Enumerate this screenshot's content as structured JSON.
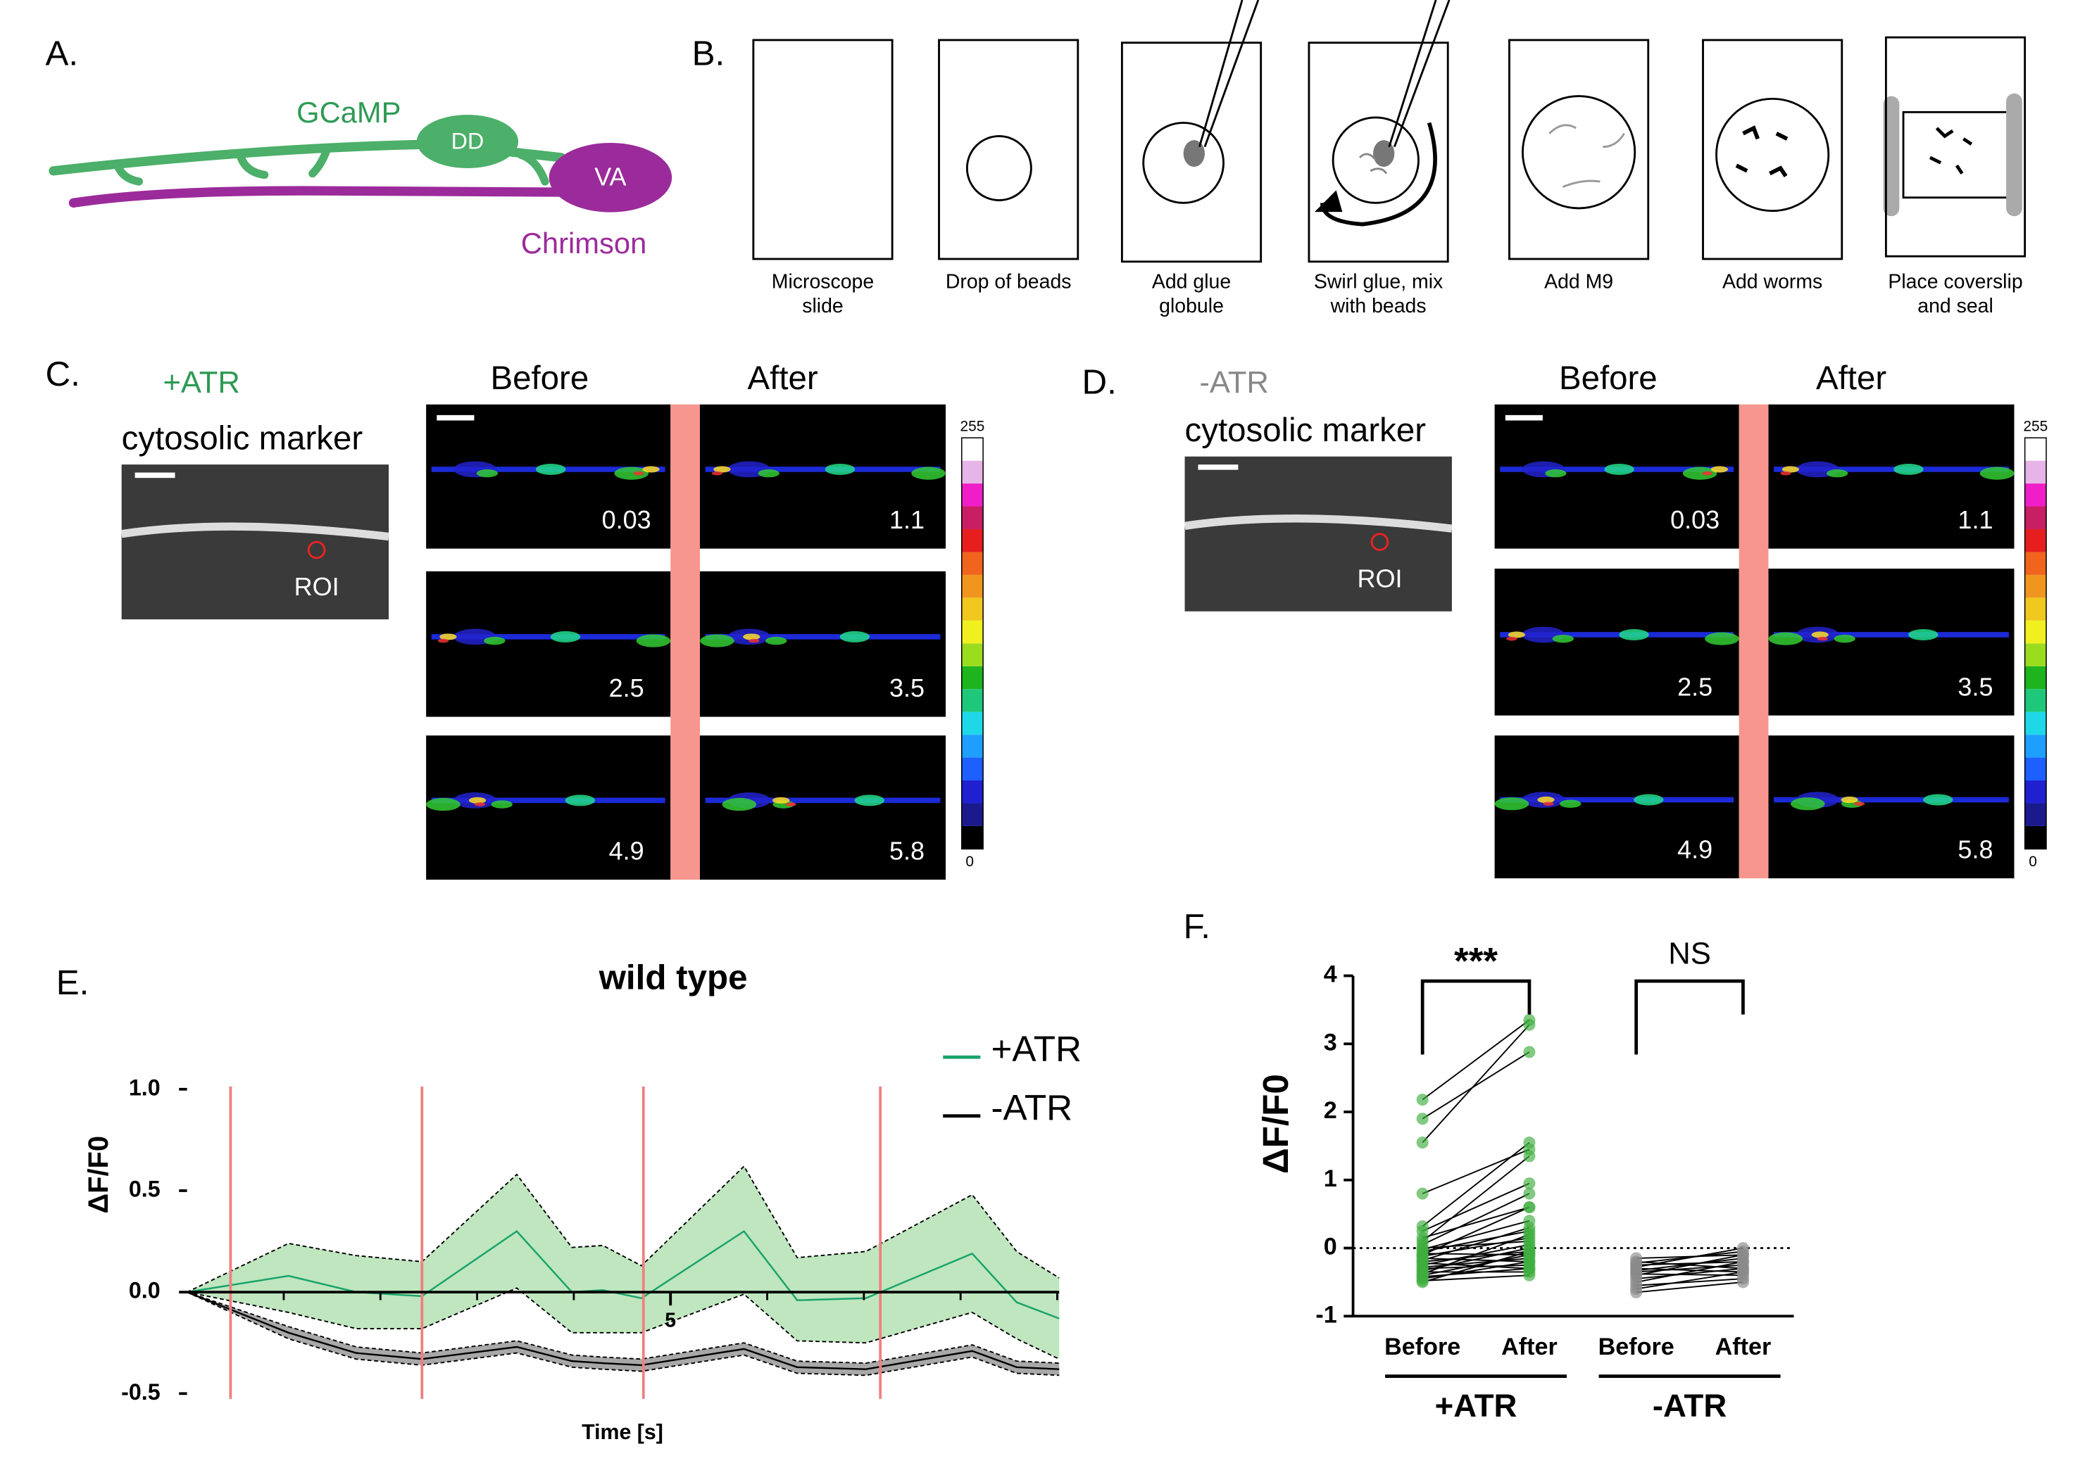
{
  "panels": {
    "a": {
      "label": "A.",
      "gcamp": "GCaMP",
      "dd": "DD",
      "va": "VA",
      "chrimson": "Chrimson"
    },
    "b": {
      "label": "B.",
      "steps": [
        [
          "Microscope",
          "slide"
        ],
        [
          "Drop of beads"
        ],
        [
          "Add glue",
          "globule"
        ],
        [
          "Swirl glue, mix",
          "with beads"
        ],
        [
          "Add M9"
        ],
        [
          "Add worms"
        ],
        [
          "Place coverslip",
          "and seal"
        ]
      ]
    },
    "c": {
      "label": "C.",
      "condition": "+ATR",
      "marker": "cytosolic marker",
      "roi": "ROI",
      "before": "Before",
      "after": "After",
      "cbar_max": 255,
      "cbar_min": 0,
      "times": [
        0.03,
        1.1,
        2.5,
        3.5,
        4.9,
        5.8
      ]
    },
    "d": {
      "label": "D.",
      "condition": "-ATR",
      "marker": "cytosolic marker",
      "roi": "ROI",
      "before": "Before",
      "after": "After",
      "cbar_max": 255,
      "cbar_min": 0,
      "times": [
        0.03,
        1.1,
        2.5,
        3.5,
        4.9,
        5.8
      ]
    }
  },
  "chart_data": [
    {
      "type": "line",
      "panel": "E.",
      "title": "wild type",
      "xlabel": "Time [s]",
      "ylabel": "ΔF/F0",
      "x": [
        0,
        1.05,
        1.75,
        2.43,
        3.41,
        3.98,
        4.3,
        4.7,
        5.76,
        6.31,
        7.02,
        8.12,
        8.58,
        9.02
      ],
      "xlim": [
        0,
        9.02
      ],
      "xticks": [
        5
      ],
      "minor_xticks": [
        1,
        2,
        3,
        4,
        6,
        7,
        8,
        9
      ],
      "ylim": [
        -0.5,
        1
      ],
      "yticks": [
        {
          "value": -0.5,
          "label": "-0.5"
        },
        {
          "value": 0,
          "label": "0.0"
        },
        {
          "value": 0.5,
          "label": "0.5"
        },
        {
          "value": 1,
          "label": "1.0"
        }
      ],
      "stimuli": [
        0.45,
        2.43,
        4.72,
        7.17
      ],
      "stimulus_color": "#f08080",
      "legend": "upper right",
      "series": [
        {
          "name": "+ATR",
          "color": "#1aa36b",
          "band_color": "#bfe6bf",
          "values": [
            0,
            0.08,
            0,
            -0.02,
            0.3,
            0,
            0.01,
            -0.03,
            0.3,
            -0.04,
            -0.03,
            0.19,
            -0.05,
            -0.13
          ],
          "upper": [
            0,
            0.24,
            0.18,
            0.15,
            0.58,
            0.22,
            0.23,
            0.13,
            0.62,
            0.17,
            0.2,
            0.48,
            0.2,
            0.07
          ],
          "lower": [
            0,
            -0.1,
            -0.18,
            -0.18,
            0.02,
            -0.2,
            -0.2,
            -0.2,
            -0.01,
            -0.24,
            -0.25,
            -0.1,
            -0.23,
            -0.33
          ]
        },
        {
          "name": "-ATR",
          "color": "#000000",
          "band_color": "#a8a8a8",
          "values": [
            0,
            -0.2,
            -0.3,
            -0.33,
            -0.27,
            -0.34,
            -0.35,
            -0.36,
            -0.28,
            -0.37,
            -0.38,
            -0.29,
            -0.37,
            -0.38
          ],
          "upper": [
            0,
            -0.17,
            -0.27,
            -0.3,
            -0.24,
            -0.31,
            -0.32,
            -0.33,
            -0.25,
            -0.34,
            -0.35,
            -0.26,
            -0.34,
            -0.35
          ],
          "lower": [
            0,
            -0.23,
            -0.33,
            -0.36,
            -0.3,
            -0.37,
            -0.38,
            -0.39,
            -0.31,
            -0.4,
            -0.41,
            -0.32,
            -0.4,
            -0.41
          ]
        }
      ]
    },
    {
      "type": "paired",
      "panel": "F.",
      "ylabel": "ΔF/F0",
      "categories": [
        "Before",
        "After"
      ],
      "ylim": [
        -1,
        4
      ],
      "yticks": [
        -1,
        0,
        1,
        2,
        3,
        4
      ],
      "series": [
        {
          "name": "+ATR",
          "color": "#3fae3f",
          "significance": "***",
          "before": [
            2.18,
            1.9,
            1.55,
            0.8,
            0.32,
            0.25,
            0.15,
            0.1,
            0.05,
            0,
            -0.02,
            -0.05,
            -0.08,
            -0.1,
            -0.12,
            -0.15,
            -0.18,
            -0.2,
            -0.22,
            -0.25,
            -0.28,
            -0.3,
            -0.33,
            -0.35,
            -0.38,
            -0.4,
            -0.42,
            -0.45,
            -0.48,
            -0.5
          ],
          "after": [
            3.35,
            2.88,
            3.28,
            1.45,
            1.55,
            0.95,
            0.6,
            1.35,
            0.8,
            0.1,
            0.4,
            0.25,
            -0.1,
            0.6,
            0.15,
            -0.2,
            0.3,
            -0.05,
            -0.3,
            0.05,
            -0.15,
            -0.25,
            0,
            -0.35,
            0.2,
            -0.1,
            -0.3,
            -0.2,
            -0.4,
            -0.05
          ]
        },
        {
          "name": "-ATR",
          "color": "#8a8a8a",
          "significance": "NS",
          "before": [
            -0.15,
            -0.2,
            -0.22,
            -0.25,
            -0.28,
            -0.3,
            -0.33,
            -0.35,
            -0.38,
            -0.4,
            -0.45,
            -0.5,
            -0.55,
            -0.6,
            -0.65
          ],
          "after": [
            -0.1,
            -0.3,
            -0.05,
            -0.2,
            0,
            -0.35,
            -0.15,
            -0.25,
            -0.4,
            -0.1,
            -0.3,
            -0.2,
            -0.45,
            -0.35,
            -0.5
          ]
        }
      ]
    }
  ]
}
